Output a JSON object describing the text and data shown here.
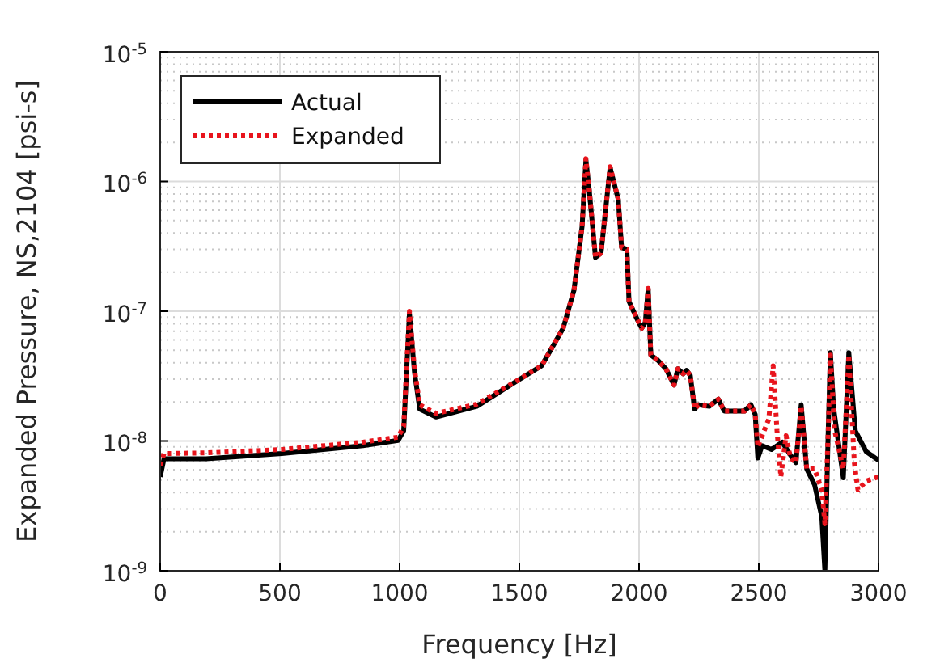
{
  "chart_data": {
    "type": "line",
    "xlabel": "Frequency [Hz]",
    "ylabel": "Expanded Pressure, NS,2104 [psi-s]",
    "xlim": [
      0,
      3000
    ],
    "xticks": [
      0,
      500,
      1000,
      1500,
      2000,
      2500,
      3000
    ],
    "ylim": [
      1e-09,
      1e-05
    ],
    "yticks": [
      {
        "value": 1e-09,
        "label": "10$^{-9}$"
      },
      {
        "value": 1e-08,
        "label": "10$^{-8}$"
      },
      {
        "value": 1e-07,
        "label": "10$^{-7}$"
      },
      {
        "value": 1e-06,
        "label": "10$^{-6}$"
      },
      {
        "value": 1e-05,
        "label": "10$^{-5}$"
      }
    ],
    "log": "y",
    "grid": true,
    "legend": "top left",
    "series": [
      {
        "name": "Actual",
        "color": "#000000",
        "line_style": "solid",
        "x": [
          0,
          16,
          192,
          508,
          847,
          994,
          1017,
          1041,
          1062,
          1084,
          1152,
          1322,
          1502,
          1593,
          1683,
          1728,
          1762,
          1778,
          1791,
          1818,
          1841,
          1879,
          1913,
          1927,
          1949,
          1958,
          1988,
          2011,
          2026,
          2038,
          2049,
          2078,
          2112,
          2146,
          2162,
          2184,
          2198,
          2214,
          2232,
          2248,
          2293,
          2331,
          2356,
          2406,
          2440,
          2467,
          2485,
          2496,
          2514,
          2553,
          2598,
          2632,
          2655,
          2677,
          2700,
          2733,
          2763,
          2776,
          2790,
          2799,
          2813,
          2853,
          2876,
          2903,
          2948,
          3000
        ],
        "values": [
          5.3e-09,
          7.3e-09,
          7.3e-09,
          8e-09,
          9.2e-09,
          1.01e-08,
          1.2e-08,
          9.6e-08,
          3.4e-08,
          1.76e-08,
          1.53e-08,
          1.85e-08,
          3e-08,
          3.8e-08,
          7.4e-08,
          1.45e-07,
          4.5e-07,
          1.46e-06,
          8.9e-07,
          2.6e-07,
          2.8e-07,
          1.28e-06,
          7.3e-07,
          3.1e-07,
          3e-07,
          1.19e-07,
          9e-08,
          7.4e-08,
          8.2e-08,
          1.49e-07,
          4.6e-08,
          4.2e-08,
          3.6e-08,
          2.7e-08,
          3.6e-08,
          3.3e-08,
          3.5e-08,
          3.2e-08,
          1.76e-08,
          1.9e-08,
          1.85e-08,
          2.1e-08,
          1.7e-08,
          1.7e-08,
          1.7e-08,
          1.9e-08,
          1.6e-08,
          7.4e-09,
          9.2e-09,
          8.6e-09,
          9.8e-09,
          7.8e-09,
          6.8e-09,
          1.9e-08,
          6.1e-09,
          4.6e-09,
          2.6e-09,
          1e-09,
          1.2e-08,
          4.8e-08,
          1.76e-08,
          5.2e-09,
          4.8e-08,
          1.2e-08,
          8.3e-09,
          7.1e-09
        ]
      },
      {
        "name": "Expanded",
        "color": "#e8141c",
        "line_style": "dotted",
        "x": [
          0,
          16,
          192,
          508,
          847,
          994,
          1017,
          1041,
          1062,
          1084,
          1152,
          1322,
          1502,
          1593,
          1683,
          1728,
          1762,
          1778,
          1791,
          1818,
          1841,
          1879,
          1913,
          1927,
          1949,
          1958,
          1988,
          2011,
          2026,
          2038,
          2049,
          2078,
          2112,
          2146,
          2162,
          2184,
          2198,
          2214,
          2232,
          2248,
          2293,
          2331,
          2356,
          2406,
          2440,
          2467,
          2485,
          2496,
          2542,
          2560,
          2576,
          2592,
          2614,
          2632,
          2655,
          2677,
          2700,
          2733,
          2763,
          2776,
          2790,
          2799,
          2817,
          2853,
          2876,
          2899,
          2914,
          2948,
          3000
        ],
        "values": [
          6.5e-09,
          8e-09,
          8.1e-09,
          8.6e-09,
          9.8e-09,
          1.07e-08,
          1.3e-08,
          1e-07,
          3.6e-08,
          1.9e-08,
          1.63e-08,
          1.92e-08,
          3e-08,
          3.8e-08,
          7.4e-08,
          1.45e-07,
          4.5e-07,
          1.5e-06,
          8.9e-07,
          2.6e-07,
          2.8e-07,
          1.3e-06,
          7.3e-07,
          3.1e-07,
          3e-07,
          1.19e-07,
          9e-08,
          7.4e-08,
          8.2e-08,
          1.5e-07,
          4.6e-08,
          4.2e-08,
          3.6e-08,
          2.7e-08,
          3.6e-08,
          3.3e-08,
          3.5e-08,
          3.2e-08,
          1.76e-08,
          1.9e-08,
          1.85e-08,
          2.1e-08,
          1.7e-08,
          1.7e-08,
          1.7e-08,
          1.9e-08,
          1.6e-08,
          9e-09,
          1.48e-08,
          3.8e-08,
          1.2e-08,
          5.3e-09,
          1.1e-08,
          7.4e-09,
          6.8e-09,
          1.85e-08,
          6.1e-09,
          6.1e-09,
          4.2e-09,
          2.3e-09,
          1.2e-08,
          4.6e-08,
          1.2e-08,
          6.1e-09,
          4.6e-08,
          6.8e-09,
          4.2e-09,
          4.9e-09,
          5.3e-09
        ]
      }
    ]
  }
}
